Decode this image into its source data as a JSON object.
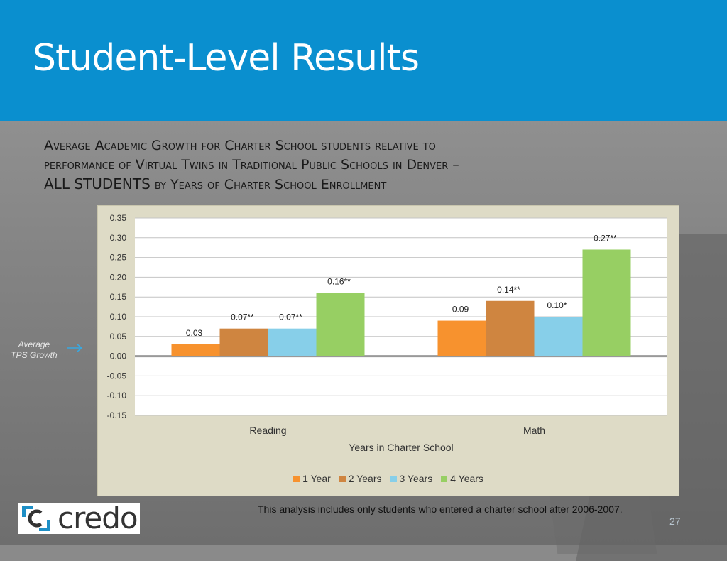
{
  "header": {
    "title": "Student-Level Results"
  },
  "subtitle": {
    "line1": "Average Academic Growth for Charter School students relative to",
    "line2": "performance of Virtual Twins in Traditional Public Schools in Denver –",
    "line3a": "ALL STUDENTS",
    "line3b": " by Years of Charter School Enrollment"
  },
  "side_note": {
    "line1": "Average",
    "line2": "TPS Growth"
  },
  "footnote": "This analysis includes only students who entered a charter school after 2006-2007.",
  "page_number": "27",
  "logo": {
    "text": "credo"
  },
  "chart_data": {
    "type": "bar",
    "categories": [
      "Reading",
      "Math"
    ],
    "xlabel": "Years in Charter School",
    "ylabel": "",
    "ylim": [
      -0.15,
      0.35
    ],
    "yticks": [
      "0.35",
      "0.30",
      "0.25",
      "0.20",
      "0.15",
      "0.10",
      "0.05",
      "0.00",
      "-0.05",
      "-0.10",
      "-0.15"
    ],
    "grid": true,
    "legend": "bottom",
    "series": [
      {
        "name": "1 Year",
        "color": "#f7922e",
        "values": [
          0.03,
          0.09
        ],
        "labels": [
          "0.03",
          "0.09"
        ]
      },
      {
        "name": "2 Years",
        "color": "#cf8540",
        "values": [
          0.07,
          0.14
        ],
        "labels": [
          "0.07**",
          "0.14**"
        ]
      },
      {
        "name": "3 Years",
        "color": "#87cfe9",
        "values": [
          0.07,
          0.1
        ],
        "labels": [
          "0.07**",
          "0.10*"
        ]
      },
      {
        "name": "4 Years",
        "color": "#97cf63",
        "values": [
          0.16,
          0.27
        ],
        "labels": [
          "0.16**",
          "0.27**"
        ]
      }
    ]
  }
}
